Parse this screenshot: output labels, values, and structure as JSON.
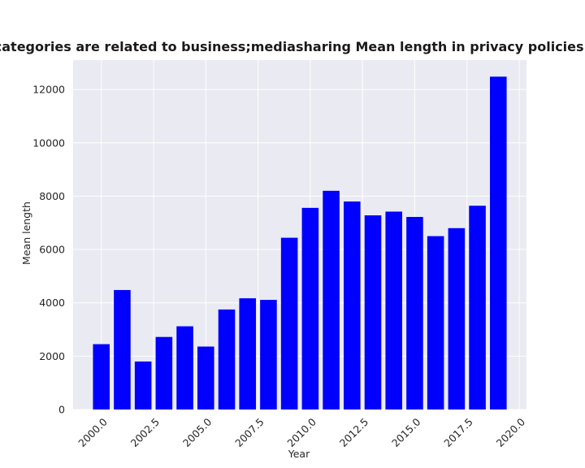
{
  "chart_data": {
    "type": "bar",
    "title": "when categories are related to business;mediasharing Mean length in privacy policies by Year",
    "xlabel": "Year",
    "ylabel": "Mean length",
    "x": [
      2000,
      2001,
      2002,
      2003,
      2004,
      2005,
      2006,
      2007,
      2008,
      2009,
      2010,
      2011,
      2012,
      2013,
      2014,
      2015,
      2016,
      2017,
      2018,
      2019
    ],
    "values": [
      2450,
      4480,
      1800,
      2720,
      3120,
      2360,
      3750,
      4170,
      4110,
      6440,
      7560,
      8200,
      7800,
      7280,
      7420,
      7220,
      6500,
      6800,
      7640,
      12480
    ],
    "xlim": [
      1998.65,
      2020.35
    ],
    "ylim": [
      0,
      13100
    ],
    "xticks": [
      2000.0,
      2002.5,
      2005.0,
      2007.5,
      2010.0,
      2012.5,
      2015.0,
      2017.5,
      2020.0
    ],
    "xtick_labels": [
      "2000.0",
      "2002.5",
      "2005.0",
      "2007.5",
      "2010.0",
      "2012.5",
      "2015.0",
      "2017.5",
      "2020.0"
    ],
    "yticks": [
      0,
      2000,
      4000,
      6000,
      8000,
      10000,
      12000
    ],
    "ytick_labels": [
      "0",
      "2000",
      "4000",
      "6000",
      "8000",
      "10000",
      "12000"
    ],
    "bar_width": 0.8,
    "grid": true,
    "legend": "none",
    "colors": {
      "bar": "#0000ff",
      "plot_background": "#eaeaf2",
      "grid": "#ffffff"
    }
  }
}
